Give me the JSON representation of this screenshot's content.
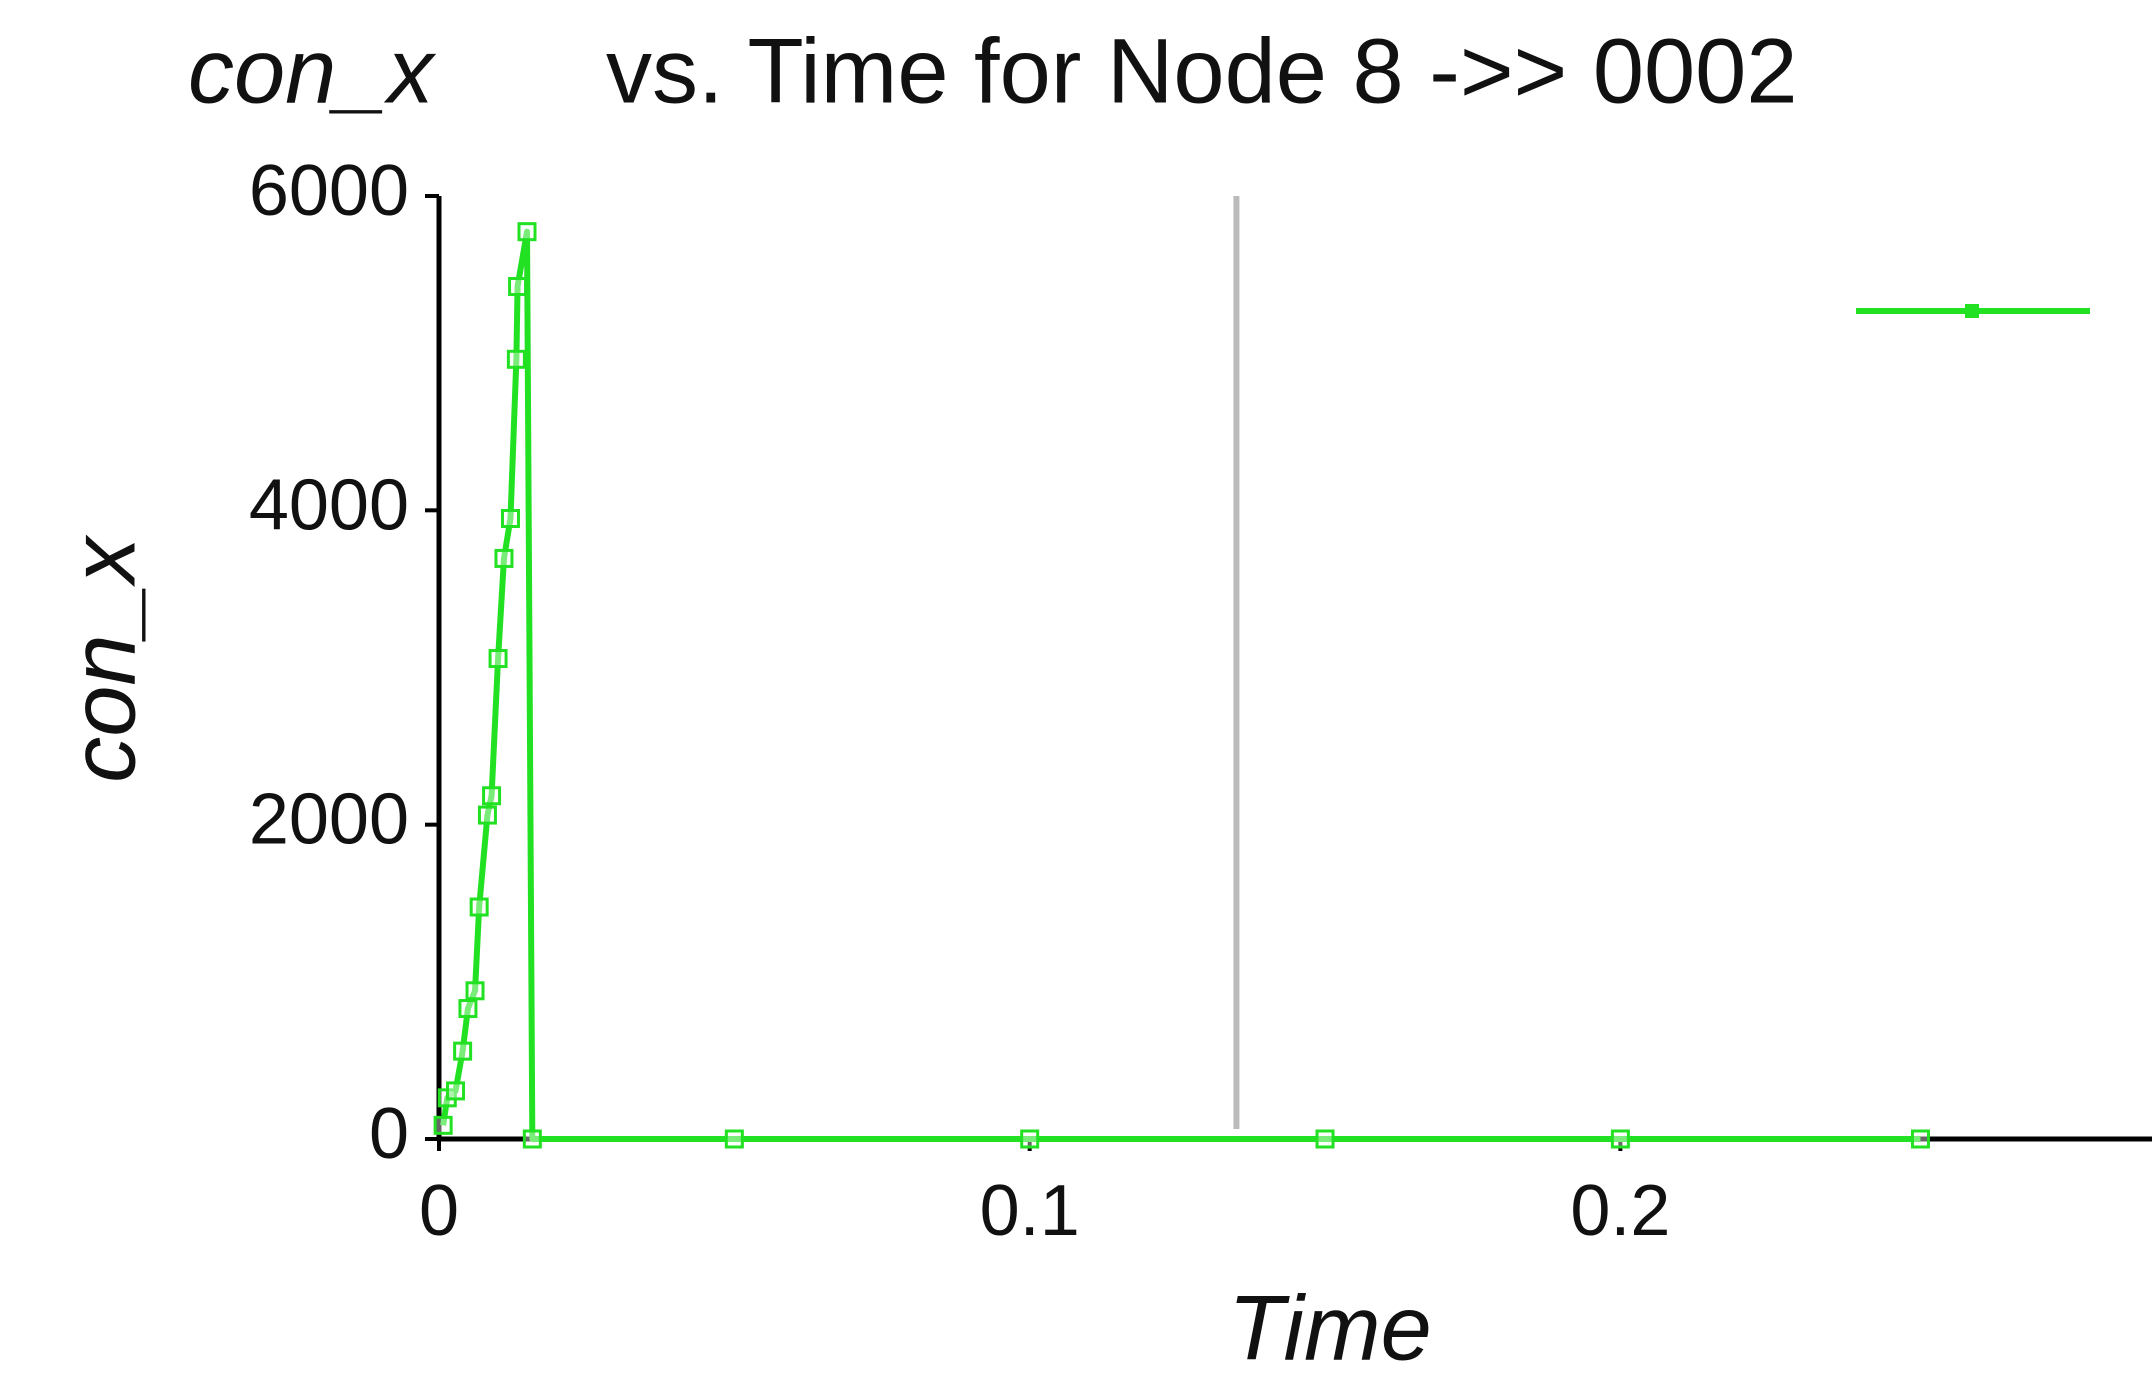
{
  "chart_data": {
    "type": "line",
    "title_variable": "con_x",
    "title": "vs. Time for Node 8 ->> 0002",
    "xlabel": "Time",
    "ylabel": "con_x",
    "x": [
      0.0007,
      0.0014,
      0.0028,
      0.004,
      0.0049,
      0.0061,
      0.0068,
      0.0082,
      0.0089,
      0.01,
      0.011,
      0.0121,
      0.0131,
      0.0133,
      0.0149,
      0.0158,
      0.05,
      0.1,
      0.15,
      0.2,
      0.2508
    ],
    "series": [
      {
        "color": "#22e022",
        "values": [
          87,
          262,
          306,
          559,
          830,
          943,
          1476,
          2061,
          2184,
          3057,
          3694,
          3948,
          4961,
          5424,
          5773,
          0,
          0,
          0,
          0,
          0,
          0
        ]
      }
    ],
    "xlim": [
      0,
      0.29
    ],
    "xticks": [
      0,
      0.1,
      0.2
    ],
    "ylim": [
      0,
      6000
    ],
    "yticks": [
      0,
      2000,
      4000,
      6000
    ],
    "cursor_x": 0.135,
    "legend": "upper right"
  }
}
